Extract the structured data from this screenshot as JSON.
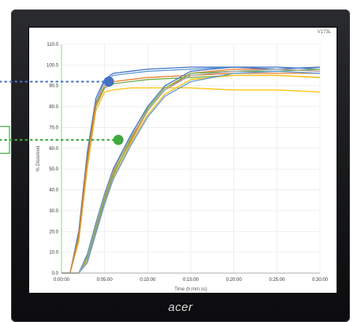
{
  "monitor": {
    "brand": "acer",
    "model": "V173L"
  },
  "chart_data": {
    "type": "line",
    "xlabel": "Time (h:mm:ss)",
    "ylabel": "% Dissolved",
    "x_ticks": [
      "0:00:00",
      "0:05:00",
      "0:10:00",
      "0:15:00",
      "0:20:00",
      "0:25:00",
      "0:30:00"
    ],
    "y_ticks": [
      "0.0",
      "10.0",
      "20.0",
      "30.0",
      "40.0",
      "50.0",
      "60.0",
      "70.0",
      "80.0",
      "90.0",
      "100.0",
      "110.0"
    ],
    "xlim": [
      0,
      30
    ],
    "ylim": [
      0,
      110
    ],
    "grid": true,
    "series": [
      {
        "color": "#4472c4",
        "x": [
          0,
          1,
          2,
          3,
          4,
          5,
          6,
          8,
          10,
          15,
          20,
          25,
          30
        ],
        "y": [
          0,
          0,
          20,
          58,
          84,
          93,
          96,
          97,
          98,
          99,
          99,
          99,
          98
        ]
      },
      {
        "color": "#5b9bd5",
        "x": [
          0,
          1,
          2,
          3,
          4,
          5,
          6,
          8,
          10,
          15,
          20,
          25,
          30
        ],
        "y": [
          0,
          0,
          18,
          55,
          82,
          92,
          95,
          96,
          97,
          98,
          99,
          98,
          99
        ]
      },
      {
        "color": "#70ad47",
        "x": [
          0,
          1,
          2,
          3,
          4,
          5,
          6,
          8,
          10,
          15,
          20,
          25,
          30
        ],
        "y": [
          0,
          0,
          16,
          52,
          80,
          89,
          91,
          92,
          93,
          94,
          95,
          95,
          94
        ]
      },
      {
        "color": "#ffc000",
        "x": [
          0,
          1,
          2,
          3,
          4,
          5,
          6,
          8,
          10,
          15,
          20,
          25,
          30
        ],
        "y": [
          0,
          0,
          15,
          50,
          78,
          87,
          88,
          89,
          89,
          89,
          88,
          88,
          87
        ]
      },
      {
        "color": "#ed7d31",
        "x": [
          0,
          1,
          2,
          3,
          4,
          5,
          6,
          8,
          10,
          15,
          20,
          25,
          30
        ],
        "y": [
          0,
          0,
          17,
          54,
          81,
          90,
          92,
          93,
          94,
          95,
          96,
          96,
          96
        ]
      },
      {
        "color": "#ed7d31",
        "x": [
          0,
          1,
          2,
          3,
          4,
          5,
          6,
          8,
          10,
          12,
          15,
          20,
          25,
          30
        ],
        "y": [
          0,
          0,
          0,
          8,
          22,
          36,
          48,
          63,
          78,
          88,
          96,
          98,
          98,
          97
        ]
      },
      {
        "color": "#ffc000",
        "x": [
          0,
          1,
          2,
          3,
          4,
          5,
          6,
          8,
          10,
          12,
          15,
          20,
          25,
          30
        ],
        "y": [
          0,
          0,
          0,
          6,
          20,
          34,
          46,
          62,
          76,
          86,
          93,
          95,
          95,
          94
        ]
      },
      {
        "color": "#4472c4",
        "x": [
          0,
          1,
          2,
          3,
          4,
          5,
          6,
          8,
          10,
          12,
          15,
          20,
          25,
          30
        ],
        "y": [
          0,
          0,
          0,
          9,
          24,
          38,
          50,
          66,
          80,
          90,
          97,
          99,
          98,
          99
        ]
      },
      {
        "color": "#70ad47",
        "x": [
          0,
          1,
          2,
          3,
          4,
          5,
          6,
          8,
          10,
          12,
          15,
          20,
          25,
          30
        ],
        "y": [
          0,
          0,
          0,
          7,
          21,
          35,
          47,
          64,
          79,
          89,
          96,
          97,
          97,
          98
        ]
      },
      {
        "color": "#5b9bd5",
        "x": [
          0,
          1,
          2,
          3,
          4,
          5,
          6,
          8,
          10,
          12,
          15,
          20,
          25,
          30
        ],
        "y": [
          0,
          0,
          0,
          5,
          19,
          33,
          45,
          61,
          75,
          85,
          92,
          96,
          97,
          96
        ]
      },
      {
        "color": "#a5a5a5",
        "x": [
          0,
          1,
          2,
          3,
          4,
          5,
          6,
          8,
          10,
          12,
          15,
          20,
          25,
          30
        ],
        "y": [
          0,
          0,
          0,
          8,
          23,
          37,
          49,
          65,
          78,
          88,
          95,
          97,
          98,
          97
        ]
      }
    ],
    "markers": [
      {
        "name": "blue-point",
        "x": 5.5,
        "y": 92,
        "color": "#4472c4"
      },
      {
        "name": "green-point",
        "x": 6.6,
        "y": 64,
        "color": "#3daa3b"
      }
    ]
  },
  "callouts": [
    {
      "color": "#4472c4",
      "target": "blue-point"
    },
    {
      "color": "#3daa3b",
      "target": "green-point"
    }
  ]
}
